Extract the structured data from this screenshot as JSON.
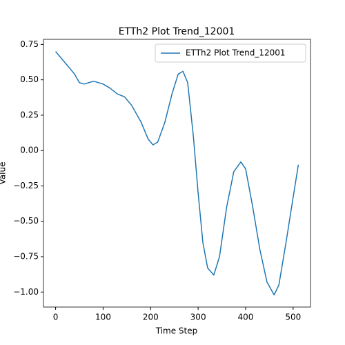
{
  "chart_data": {
    "type": "line",
    "title": "ETTh2 Plot Trend_12001",
    "x_label": "Time Step",
    "y_label": "Value",
    "x": [
      0,
      20,
      40,
      50,
      60,
      80,
      100,
      115,
      130,
      145,
      160,
      180,
      195,
      205,
      215,
      230,
      245,
      258,
      268,
      278,
      290,
      300,
      310,
      320,
      333,
      345,
      360,
      375,
      390,
      400,
      415,
      430,
      445,
      460,
      470,
      485,
      500,
      511
    ],
    "series": [
      {
        "name": "ETTh2 Plot Trend_12001",
        "color": "#1f77b4",
        "values": [
          0.7,
          0.62,
          0.54,
          0.48,
          0.47,
          0.49,
          0.47,
          0.44,
          0.4,
          0.38,
          0.32,
          0.2,
          0.08,
          0.04,
          0.06,
          0.2,
          0.4,
          0.54,
          0.56,
          0.48,
          0.1,
          -0.3,
          -0.65,
          -0.83,
          -0.88,
          -0.75,
          -0.4,
          -0.15,
          -0.08,
          -0.13,
          -0.4,
          -0.7,
          -0.93,
          -1.02,
          -0.95,
          -0.65,
          -0.33,
          -0.1
        ]
      }
    ],
    "xlim": [
      -25.55,
      536.55
    ],
    "xticks": [
      0,
      100,
      200,
      300,
      400,
      500
    ],
    "ylim": [
      -1.106,
      0.786
    ],
    "yticks": [
      {
        "value": -1.0,
        "label": "−1.00"
      },
      {
        "value": -0.75,
        "label": "−0.75"
      },
      {
        "value": -0.5,
        "label": "−0.50"
      },
      {
        "value": -0.25,
        "label": "−0.25"
      },
      {
        "value": 0,
        "label": "0.00"
      },
      {
        "value": 0.25,
        "label": "0.25"
      },
      {
        "value": 0.5,
        "label": "0.50"
      },
      {
        "value": 0.75,
        "label": "0.75"
      }
    ],
    "legend": "upper right"
  }
}
